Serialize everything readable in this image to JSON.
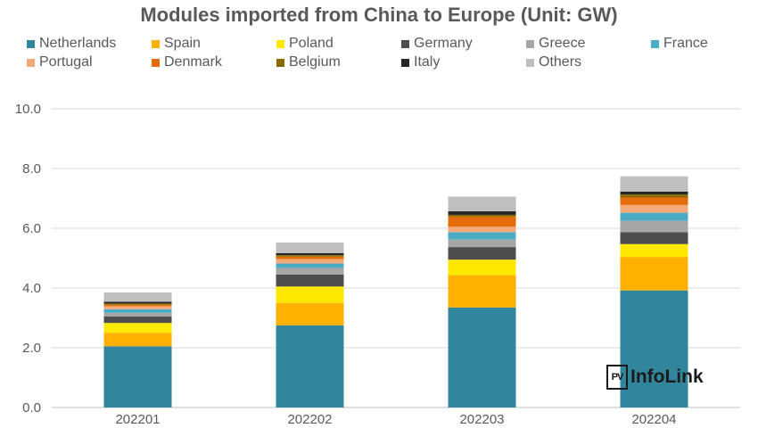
{
  "chart_data": {
    "type": "bar",
    "stacked": true,
    "title": "Modules imported from China to Europe (Unit: GW)",
    "xlabel": "",
    "ylabel": "",
    "ylim": [
      0,
      10
    ],
    "yticks": [
      "0.0",
      "2.0",
      "4.0",
      "6.0",
      "8.0",
      "10.0"
    ],
    "grid": true,
    "legend_position": "top",
    "categories": [
      "202201",
      "202202",
      "202203",
      "202204"
    ],
    "series": [
      {
        "name": "Netherlands",
        "color": "#31859C",
        "values": [
          2.05,
          2.75,
          3.35,
          3.92
        ]
      },
      {
        "name": "Spain",
        "color": "#FFB000",
        "values": [
          0.45,
          0.75,
          1.08,
          1.12
        ]
      },
      {
        "name": "Poland",
        "color": "#FFE800",
        "values": [
          0.33,
          0.55,
          0.52,
          0.43
        ]
      },
      {
        "name": "Germany",
        "color": "#4D4D4D",
        "values": [
          0.22,
          0.4,
          0.42,
          0.4
        ]
      },
      {
        "name": "Greece",
        "color": "#A6A6A6",
        "values": [
          0.12,
          0.22,
          0.25,
          0.38
        ]
      },
      {
        "name": "France",
        "color": "#4BACC6",
        "values": [
          0.12,
          0.15,
          0.25,
          0.27
        ]
      },
      {
        "name": "Portugal",
        "color": "#F4A97A",
        "values": [
          0.1,
          0.15,
          0.18,
          0.26
        ]
      },
      {
        "name": "Denmark",
        "color": "#E46C0A",
        "values": [
          0.05,
          0.08,
          0.34,
          0.25
        ]
      },
      {
        "name": "Belgium",
        "color": "#8B6B00",
        "values": [
          0.04,
          0.05,
          0.06,
          0.1
        ]
      },
      {
        "name": "Italy",
        "color": "#262626",
        "values": [
          0.06,
          0.07,
          0.12,
          0.1
        ]
      },
      {
        "name": "Others",
        "color": "#BFBFBF",
        "values": [
          0.31,
          0.35,
          0.49,
          0.51
        ]
      }
    ]
  },
  "watermark": {
    "badge": "PV",
    "text": "InfoLink"
  }
}
